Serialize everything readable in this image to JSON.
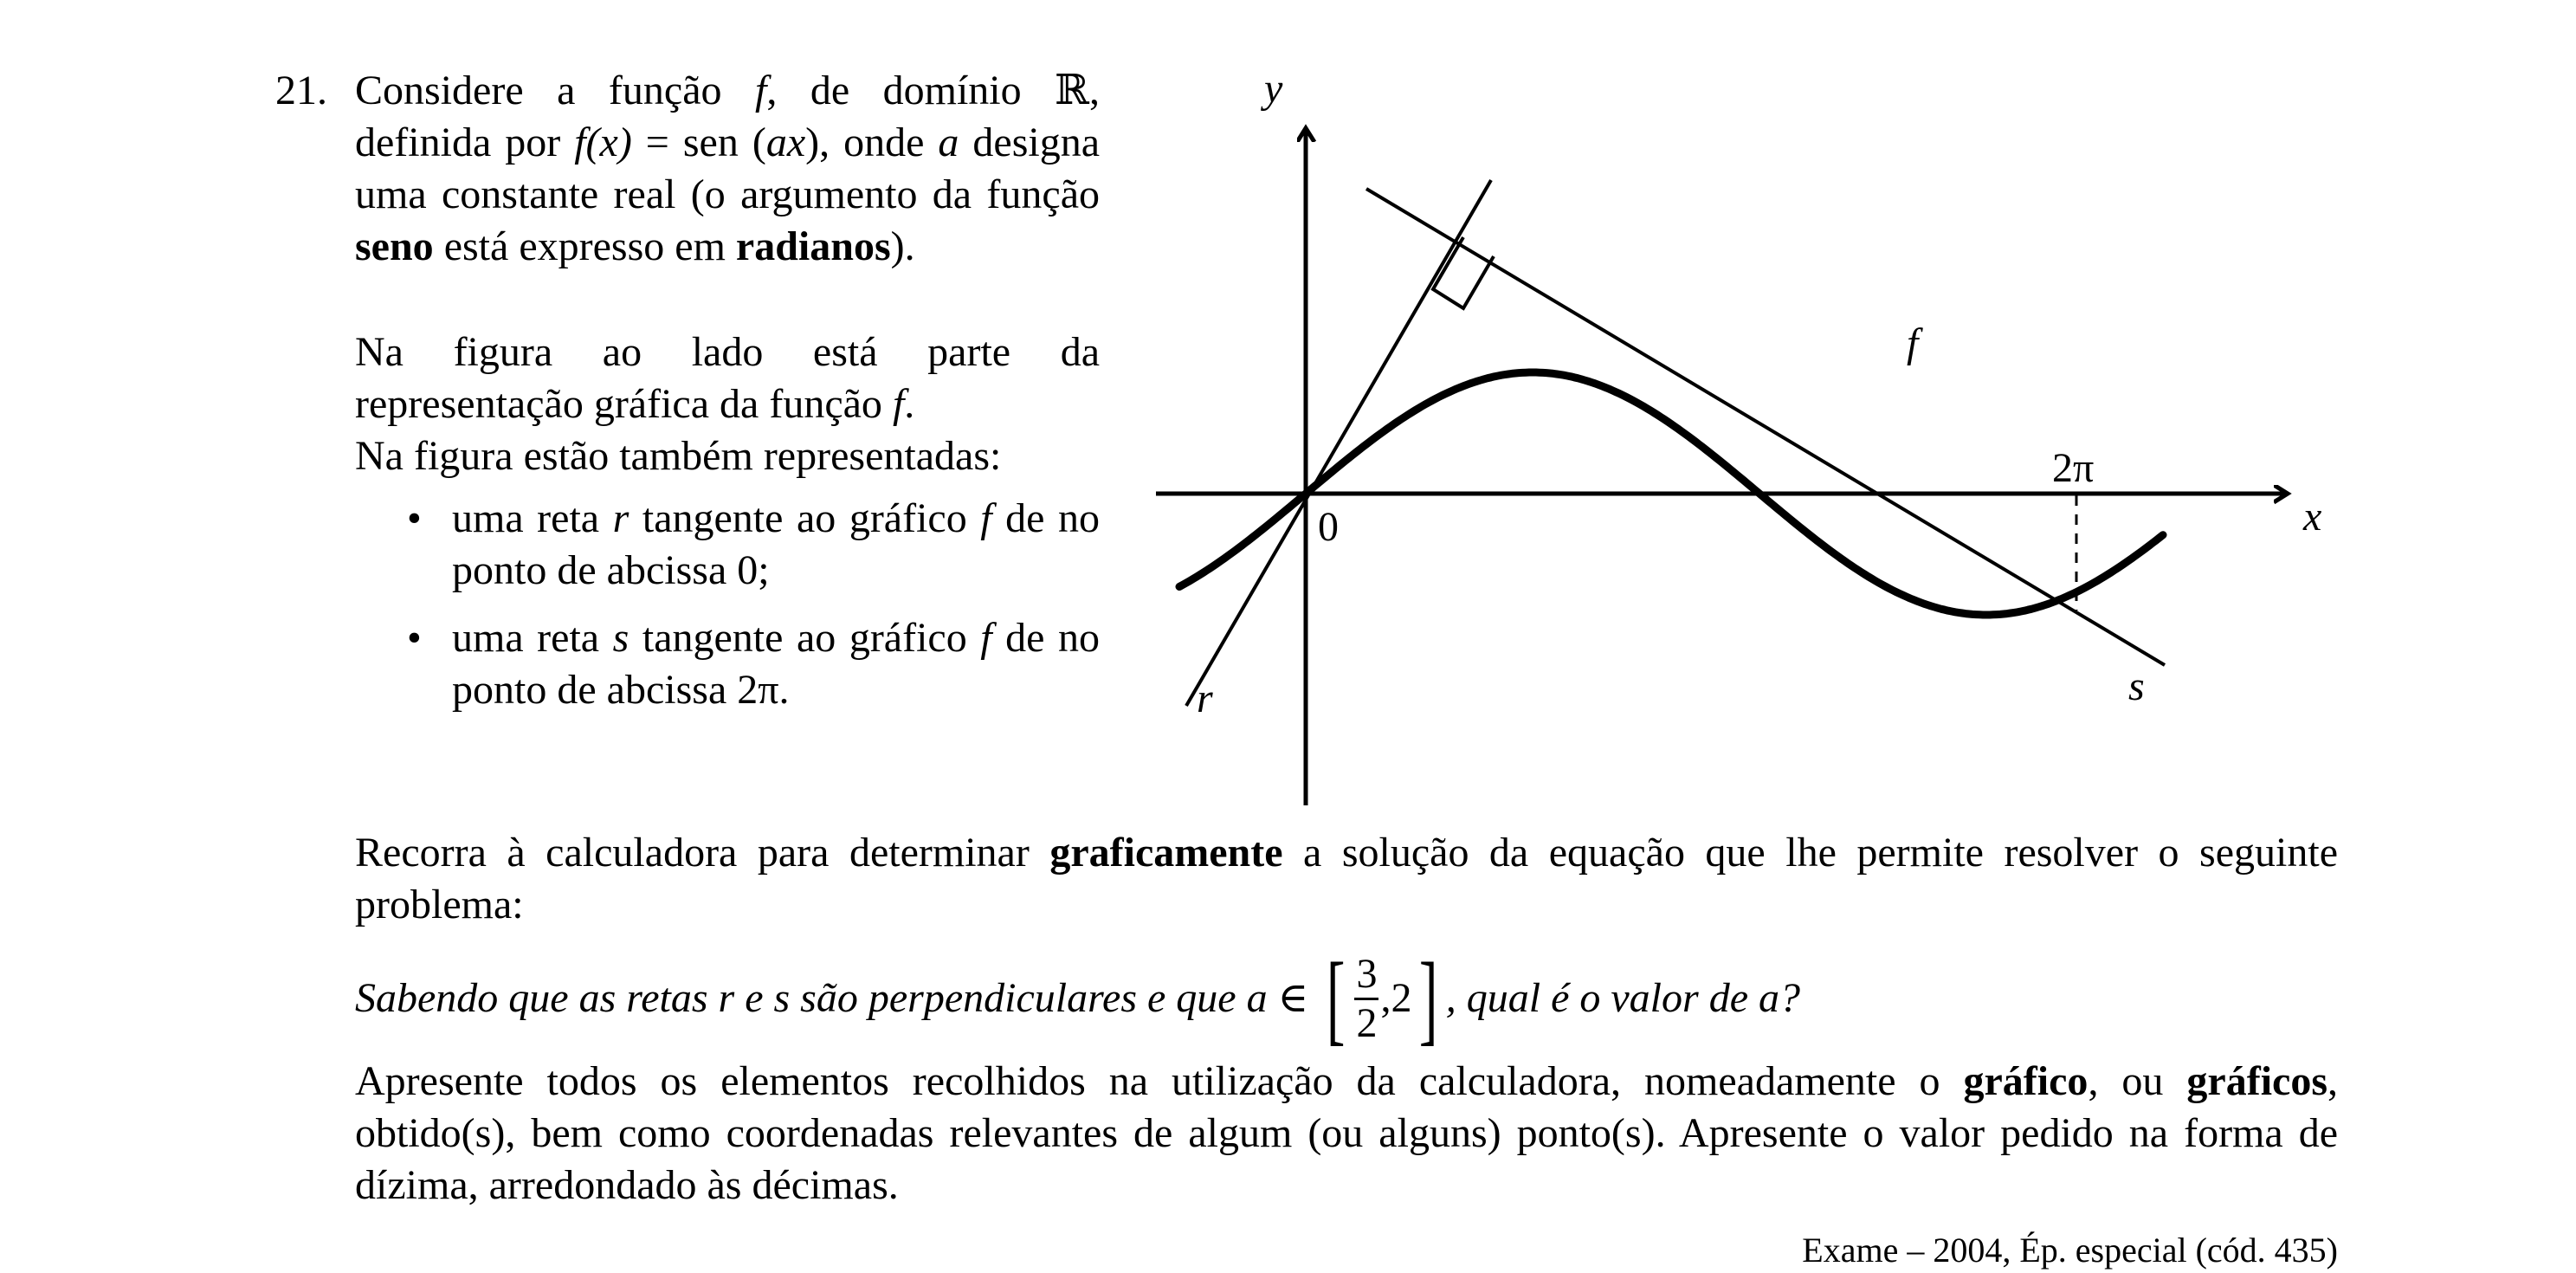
{
  "problem": {
    "number": "21.",
    "intro_part1": "Considere a função ",
    "f": "f",
    "intro_part2": ", de domínio ℝ, definida por ",
    "fx": "f(x)",
    "intro_part3": " = sen (",
    "ax": "ax",
    "intro_part4": "), onde ",
    "a": "a",
    "intro_part5": " designa uma constante real (o argumento da função ",
    "seno": "seno",
    "intro_part6": " está expresso em ",
    "radianos": "radianos",
    "intro_part7": ").",
    "para2_part1": "Na figura ao lado está parte da representação gráfica da função ",
    "para2_f": "f",
    "para2_part2": ".",
    "para3": "Na figura estão também representadas:",
    "bullet_dot": "•",
    "bullet1_part1": "uma reta ",
    "bullet1_r": "r",
    "bullet1_part2": " tangente ao gráfico ",
    "bullet1_f": "f",
    "bullet1_part3": " de no ponto de abcissa 0;",
    "bullet2_part1": "uma reta ",
    "bullet2_s": "s",
    "bullet2_part2": " tangente ao gráfico ",
    "bullet2_f": "f",
    "bullet2_part3": " de no ponto de abcissa 2π.",
    "bottom_part1": "Recorra à calculadora para determinar ",
    "graficamente": "graficamente",
    "bottom_part2": " a solução da equação que lhe permite resolver o seguinte problema:",
    "question_part1": "Sabendo que as retas r e s são perpendiculares e que a ∈ ",
    "bracket_open": "[",
    "frac_num": "3",
    "frac_den": "2",
    "question_comma_two": ",2",
    "bracket_close": "]",
    "question_part2": ", qual é o valor de a?",
    "final_part1": "Apresente todos os elementos recolhidos na utilização da calculadora, nomeadamente o ",
    "grafico": "gráfico",
    "final_part2": ", ou ",
    "graficos": "gráficos",
    "final_part3": ", obtido(s), bem como coordenadas relevantes de algum (ou alguns) ponto(s). Apresente o valor pedido na forma de dízima, arredondado às décimas.",
    "source": "Exame – 2004, Ép. especial (cód. 435)"
  },
  "figure": {
    "label_y": "y",
    "label_x": "x",
    "label_origin": "0",
    "label_f": "f",
    "label_r": "r",
    "label_s": "s",
    "label_2pi": "2π"
  }
}
